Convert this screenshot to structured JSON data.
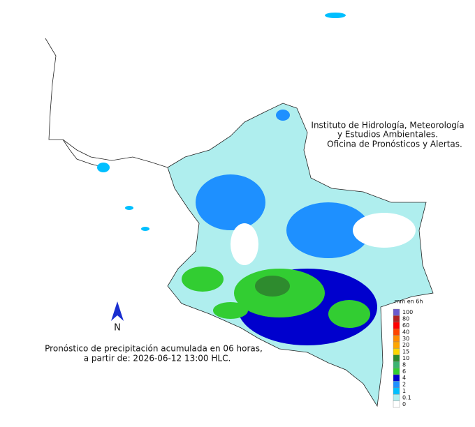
{
  "header": {
    "lines": [
      "Instituto de Hidrología, Meteorología",
      "y Estudios Ambientales.",
      "Oficina de Pronósticos y Alertas."
    ]
  },
  "caption": {
    "lines": [
      "Pronóstico de precipitación acumulada en 06 horas,",
      "a partir de: 2026-06-12 13:00 HLC."
    ]
  },
  "north": "N",
  "legend": {
    "title": "mm en 6h",
    "items": [
      {
        "label": 100,
        "color": "#6a5acd"
      },
      {
        "label": 80,
        "color": "#b22222"
      },
      {
        "label": 60,
        "color": "#ff0000"
      },
      {
        "label": 40,
        "color": "#ff4500"
      },
      {
        "label": 30,
        "color": "#ff8c00"
      },
      {
        "label": 20,
        "color": "#ffa500"
      },
      {
        "label": 15,
        "color": "#ffd700"
      },
      {
        "label": 10,
        "color": "#2e8b2e"
      },
      {
        "label": 8,
        "color": "#3cb371"
      },
      {
        "label": 6,
        "color": "#32cd32"
      },
      {
        "label": 4,
        "color": "#0000cd"
      },
      {
        "label": 2,
        "color": "#1e90ff"
      },
      {
        "label": 1,
        "color": "#00bfff"
      },
      {
        "label": 0.1,
        "color": "#afeeee"
      },
      {
        "label": 0,
        "color": "#ffffff"
      }
    ]
  }
}
